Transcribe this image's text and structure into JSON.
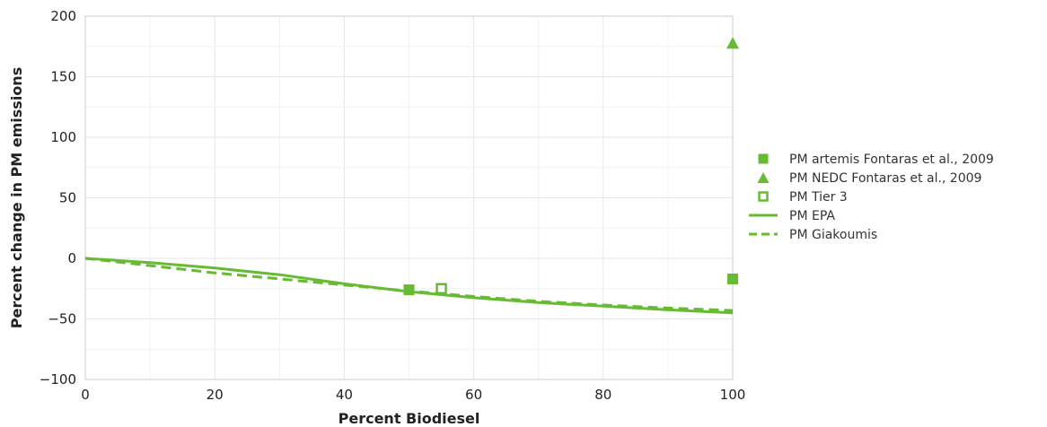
{
  "chart_data": {
    "type": "scatter",
    "xlabel": "Percent Biodiesel",
    "ylabel": "Percent change in PM emissions",
    "xlim": [
      0,
      100
    ],
    "ylim": [
      -100,
      200
    ],
    "x_ticks": [
      "0",
      "20",
      "40",
      "60",
      "80",
      "100"
    ],
    "y_ticks": [
      "−100",
      "−50",
      "0",
      "50",
      "100",
      "150",
      "200"
    ],
    "x_tick_values": [
      0,
      20,
      40,
      60,
      80,
      100
    ],
    "y_tick_values": [
      -100,
      -50,
      0,
      50,
      100,
      150,
      200
    ],
    "grid": true,
    "legend_position": "right",
    "series": [
      {
        "name": "PM artemis Fontaras et al., 2009",
        "kind": "scatter",
        "marker": "square-filled",
        "color": "#66bb33",
        "points": [
          [
            50,
            -26
          ],
          [
            100,
            -17
          ]
        ]
      },
      {
        "name": "PM NEDC Fontaras et al., 2009",
        "kind": "scatter",
        "marker": "triangle-filled",
        "color": "#66bb33",
        "points": [
          [
            100,
            178
          ]
        ]
      },
      {
        "name": "PM Tier 3",
        "kind": "scatter",
        "marker": "square-open",
        "color": "#66bb33",
        "points": [
          [
            55,
            -25
          ]
        ]
      },
      {
        "name": "PM EPA",
        "kind": "line",
        "dash": "solid",
        "color": "#66bb33",
        "points": [
          [
            0,
            0
          ],
          [
            10,
            -3.5
          ],
          [
            20,
            -8
          ],
          [
            30,
            -13.5
          ],
          [
            40,
            -21
          ],
          [
            50,
            -27.5
          ],
          [
            60,
            -32.5
          ],
          [
            70,
            -36.5
          ],
          [
            80,
            -39.5
          ],
          [
            90,
            -42.5
          ],
          [
            100,
            -45
          ]
        ]
      },
      {
        "name": "PM Giakoumis",
        "kind": "line",
        "dash": "dashed",
        "color": "#66bb33",
        "points": [
          [
            0,
            0
          ],
          [
            10,
            -6
          ],
          [
            20,
            -12
          ],
          [
            30,
            -17
          ],
          [
            40,
            -22
          ],
          [
            50,
            -27
          ],
          [
            60,
            -31.5
          ],
          [
            70,
            -35.5
          ],
          [
            80,
            -38.5
          ],
          [
            90,
            -41
          ],
          [
            100,
            -43
          ]
        ]
      }
    ]
  }
}
